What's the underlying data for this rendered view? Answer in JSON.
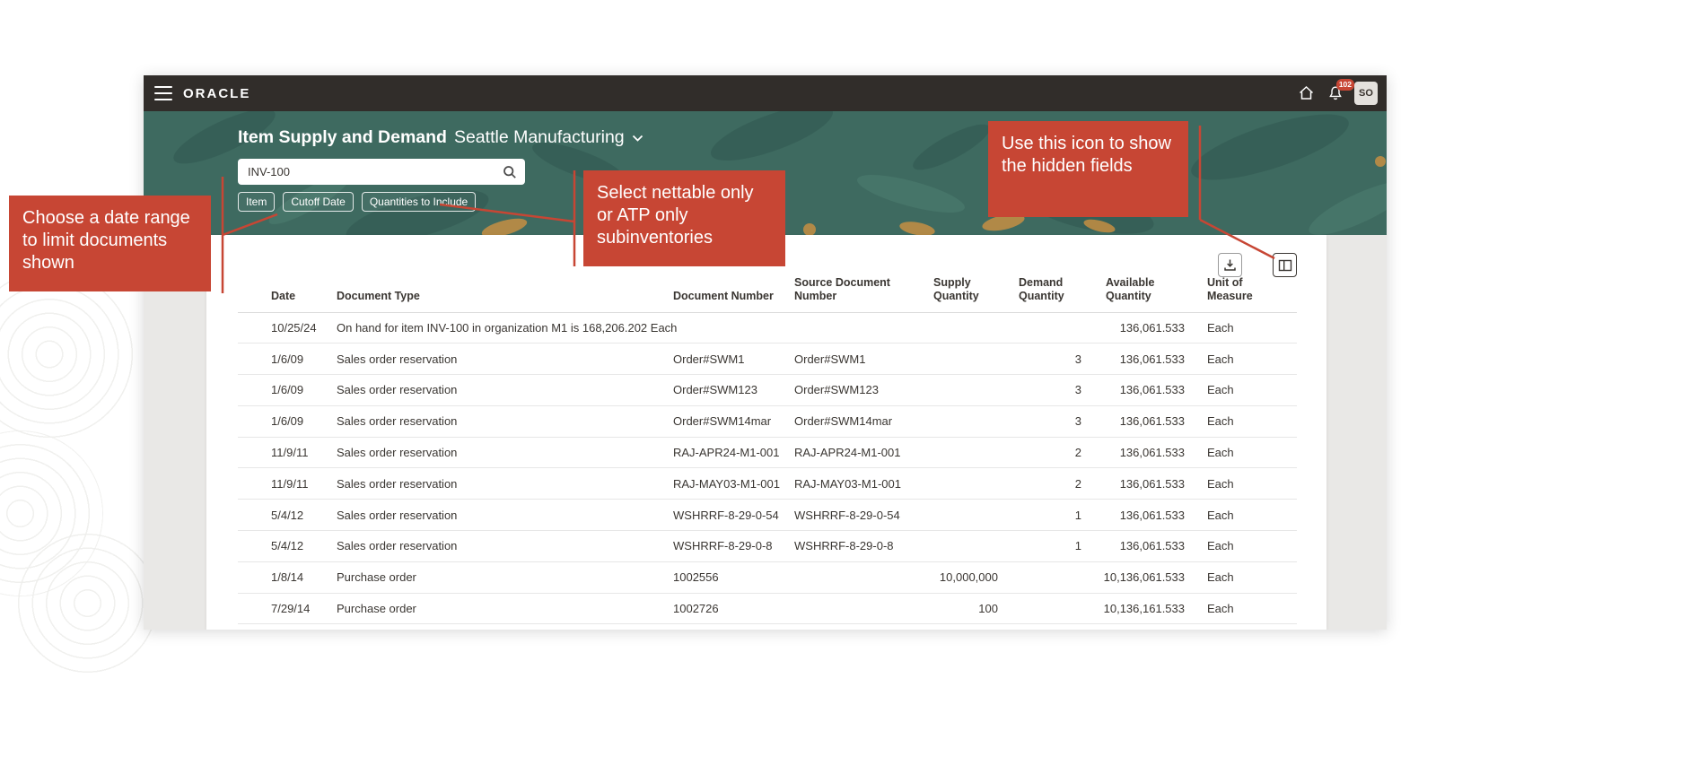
{
  "header": {
    "logo": "ORACLE",
    "notification_count": "102",
    "avatar_initials": "SO"
  },
  "banner": {
    "title_bold": "Item Supply and Demand",
    "title_context": "Seattle Manufacturing",
    "search_value": "INV-100",
    "filter_chips": [
      {
        "label": "Item"
      },
      {
        "label": "Cutoff Date"
      },
      {
        "label": "Quantities to Include"
      }
    ]
  },
  "table": {
    "columns": [
      "Date",
      "Document Type",
      "Document Number",
      "Source Document Number",
      "Supply Quantity",
      "Demand Quantity",
      "Available Quantity",
      "Unit of Measure"
    ],
    "rows": [
      {
        "date": "10/25/24",
        "document_type": "On hand for item INV-100 in organization M1 is 168,206.202 Each",
        "document_number": "",
        "source_document_number": "",
        "supply_quantity": "",
        "demand_quantity": "",
        "available_quantity": "136,061.533",
        "unit_of_measure": "Each"
      },
      {
        "date": "1/6/09",
        "document_type": "Sales order reservation",
        "document_number": "Order#SWM1",
        "source_document_number": "Order#SWM1",
        "supply_quantity": "",
        "demand_quantity": "3",
        "available_quantity": "136,061.533",
        "unit_of_measure": "Each"
      },
      {
        "date": "1/6/09",
        "document_type": "Sales order reservation",
        "document_number": "Order#SWM123",
        "source_document_number": "Order#SWM123",
        "supply_quantity": "",
        "demand_quantity": "3",
        "available_quantity": "136,061.533",
        "unit_of_measure": "Each"
      },
      {
        "date": "1/6/09",
        "document_type": "Sales order reservation",
        "document_number": "Order#SWM14mar",
        "source_document_number": "Order#SWM14mar",
        "supply_quantity": "",
        "demand_quantity": "3",
        "available_quantity": "136,061.533",
        "unit_of_measure": "Each"
      },
      {
        "date": "11/9/11",
        "document_type": "Sales order reservation",
        "document_number": "RAJ-APR24-M1-001",
        "source_document_number": "RAJ-APR24-M1-001",
        "supply_quantity": "",
        "demand_quantity": "2",
        "available_quantity": "136,061.533",
        "unit_of_measure": "Each"
      },
      {
        "date": "11/9/11",
        "document_type": "Sales order reservation",
        "document_number": "RAJ-MAY03-M1-001",
        "source_document_number": "RAJ-MAY03-M1-001",
        "supply_quantity": "",
        "demand_quantity": "2",
        "available_quantity": "136,061.533",
        "unit_of_measure": "Each"
      },
      {
        "date": "5/4/12",
        "document_type": "Sales order reservation",
        "document_number": "WSHRRF-8-29-0-54",
        "source_document_number": "WSHRRF-8-29-0-54",
        "supply_quantity": "",
        "demand_quantity": "1",
        "available_quantity": "136,061.533",
        "unit_of_measure": "Each"
      },
      {
        "date": "5/4/12",
        "document_type": "Sales order reservation",
        "document_number": "WSHRRF-8-29-0-8",
        "source_document_number": "WSHRRF-8-29-0-8",
        "supply_quantity": "",
        "demand_quantity": "1",
        "available_quantity": "136,061.533",
        "unit_of_measure": "Each"
      },
      {
        "date": "1/8/14",
        "document_type": "Purchase order",
        "document_number": "1002556",
        "source_document_number": "",
        "supply_quantity": "10,000,000",
        "demand_quantity": "",
        "available_quantity": "10,136,061.533",
        "unit_of_measure": "Each"
      },
      {
        "date": "7/29/14",
        "document_type": "Purchase order",
        "document_number": "1002726",
        "source_document_number": "",
        "supply_quantity": "100",
        "demand_quantity": "",
        "available_quantity": "10,136,161.533",
        "unit_of_measure": "Each"
      }
    ]
  },
  "annotations": [
    {
      "text": "Choose a date range to limit documents shown"
    },
    {
      "text": "Select nettable only or ATP only subinventories"
    },
    {
      "text": "Use this icon to show the hidden fields"
    }
  ],
  "colors": {
    "annotation_red": "#C74634",
    "banner_teal": "#3E6A60",
    "header_dark": "#312D2A"
  }
}
